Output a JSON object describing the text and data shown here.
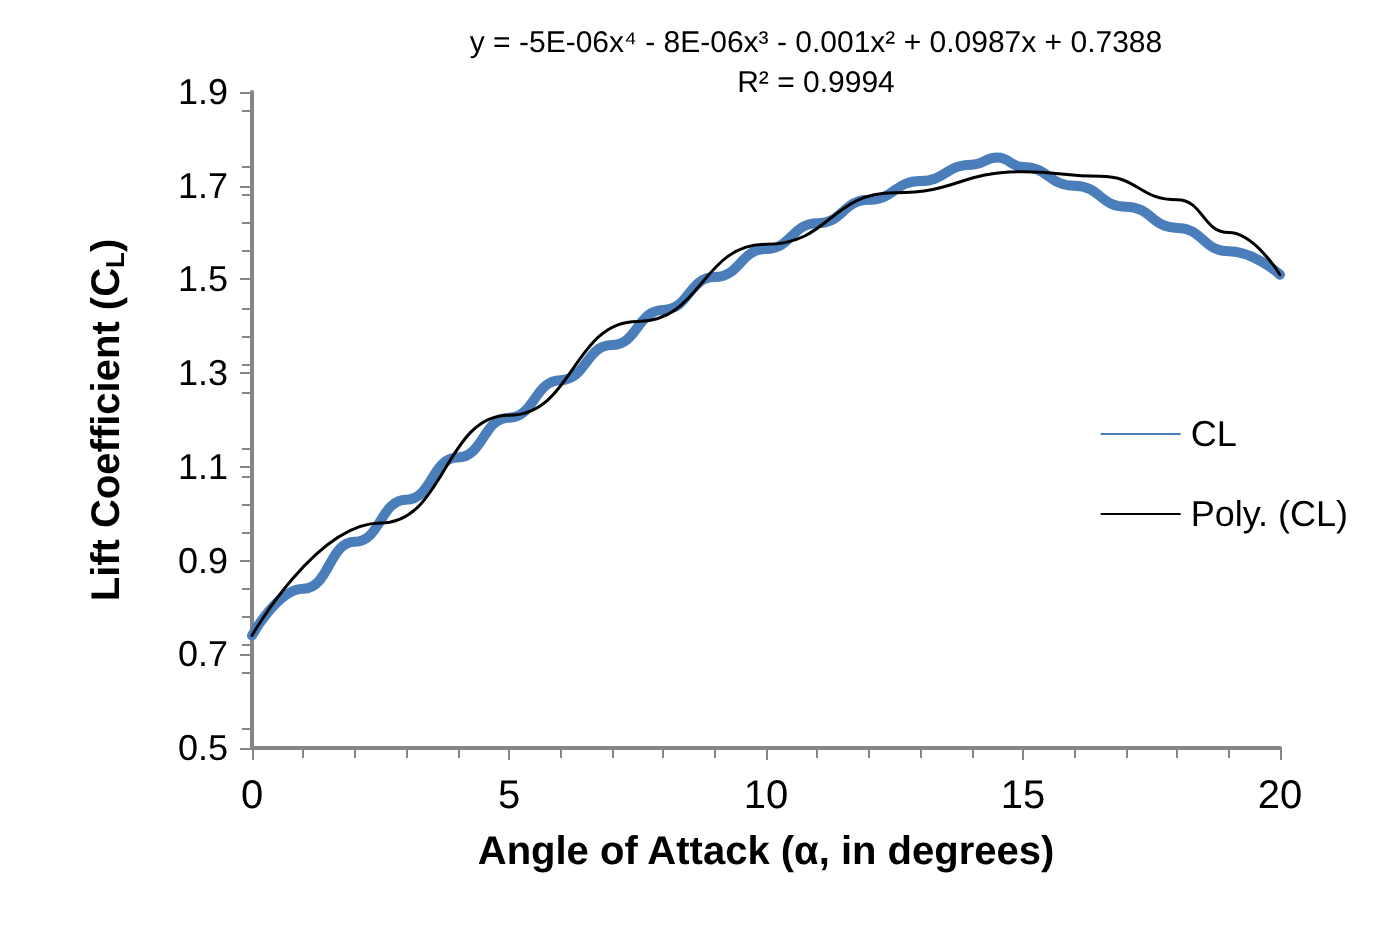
{
  "chart_data": {
    "type": "line",
    "xlabel": "Angle of Attack (α, in degrees)",
    "ylabel": "Lift Coefficient (C$_{L}$)",
    "annotations": [
      "y = -5E-06x⁴ - 8E-06x³ - 0.001x² + 0.0987x + 0.7388",
      "R² = 0.9994"
    ],
    "xlim": [
      0,
      20
    ],
    "xticks": [
      0,
      5,
      10,
      15,
      20
    ],
    "ylim": [
      0.5,
      1.9
    ],
    "yticks": [
      0.5,
      0.7,
      0.9,
      1.1,
      1.3,
      1.5,
      1.7,
      1.9
    ],
    "grid": false,
    "legend": "right",
    "marker": "none",
    "series": [
      {
        "name": "CL",
        "color": "#4a7ebb",
        "x": [
          0,
          1,
          2,
          3,
          4,
          5,
          6,
          7,
          8,
          9,
          10,
          11,
          12,
          13,
          14,
          14.5,
          15,
          16,
          17,
          18,
          19,
          20
        ],
        "values": [
          0.74,
          0.84,
          0.94,
          1.03,
          1.12,
          1.205,
          1.285,
          1.36,
          1.435,
          1.505,
          1.565,
          1.62,
          1.67,
          1.71,
          1.745,
          1.76,
          1.74,
          1.7,
          1.655,
          1.61,
          1.56,
          1.51
        ]
      },
      {
        "name": "Poly. (CL)",
        "color": "#000000",
        "x": [
          0,
          2.5,
          5,
          7.5,
          10,
          12.5,
          15,
          16.5,
          18,
          19,
          20
        ],
        "values": [
          0.74,
          0.98,
          1.21,
          1.41,
          1.575,
          1.685,
          1.73,
          1.72,
          1.67,
          1.6,
          1.51
        ]
      }
    ]
  }
}
